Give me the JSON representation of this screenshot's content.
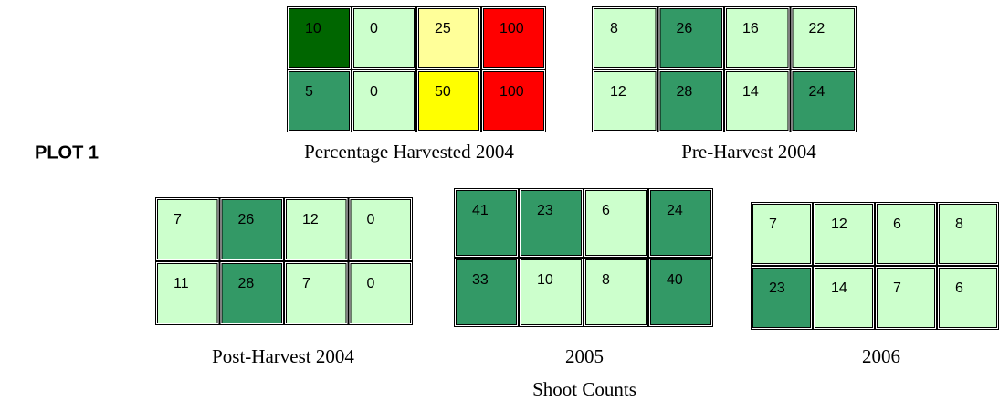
{
  "plot_label": "PLOT 1",
  "footer": "Shoot Counts",
  "grids": [
    {
      "title": "Percentage Harvested 2004",
      "rows": [
        [
          10,
          0,
          25,
          100
        ],
        [
          5,
          0,
          50,
          100
        ]
      ],
      "colors": [
        [
          "#006600",
          "#ccffcc",
          "#ffff99",
          "#ff0000"
        ],
        [
          "#339966",
          "#ccffcc",
          "#ffff00",
          "#ff0000"
        ]
      ]
    },
    {
      "title": "Pre-Harvest 2004",
      "rows": [
        [
          8,
          26,
          16,
          22
        ],
        [
          12,
          28,
          14,
          24
        ]
      ],
      "colors": [
        [
          "#ccffcc",
          "#339966",
          "#ccffcc",
          "#ccffcc"
        ],
        [
          "#ccffcc",
          "#339966",
          "#ccffcc",
          "#339966"
        ]
      ]
    },
    {
      "title": "Post-Harvest 2004",
      "rows": [
        [
          7,
          26,
          12,
          0
        ],
        [
          11,
          28,
          7,
          0
        ]
      ],
      "colors": [
        [
          "#ccffcc",
          "#339966",
          "#ccffcc",
          "#ccffcc"
        ],
        [
          "#ccffcc",
          "#339966",
          "#ccffcc",
          "#ccffcc"
        ]
      ]
    },
    {
      "title": "2005",
      "rows": [
        [
          41,
          23,
          6,
          24
        ],
        [
          33,
          10,
          8,
          40
        ]
      ],
      "colors": [
        [
          "#339966",
          "#339966",
          "#ccffcc",
          "#339966"
        ],
        [
          "#339966",
          "#ccffcc",
          "#ccffcc",
          "#339966"
        ]
      ]
    },
    {
      "title": "2006",
      "rows": [
        [
          7,
          12,
          6,
          8
        ],
        [
          23,
          14,
          7,
          6
        ]
      ],
      "colors": [
        [
          "#ccffcc",
          "#ccffcc",
          "#ccffcc",
          "#ccffcc"
        ],
        [
          "#339966",
          "#ccffcc",
          "#ccffcc",
          "#ccffcc"
        ]
      ]
    }
  ]
}
